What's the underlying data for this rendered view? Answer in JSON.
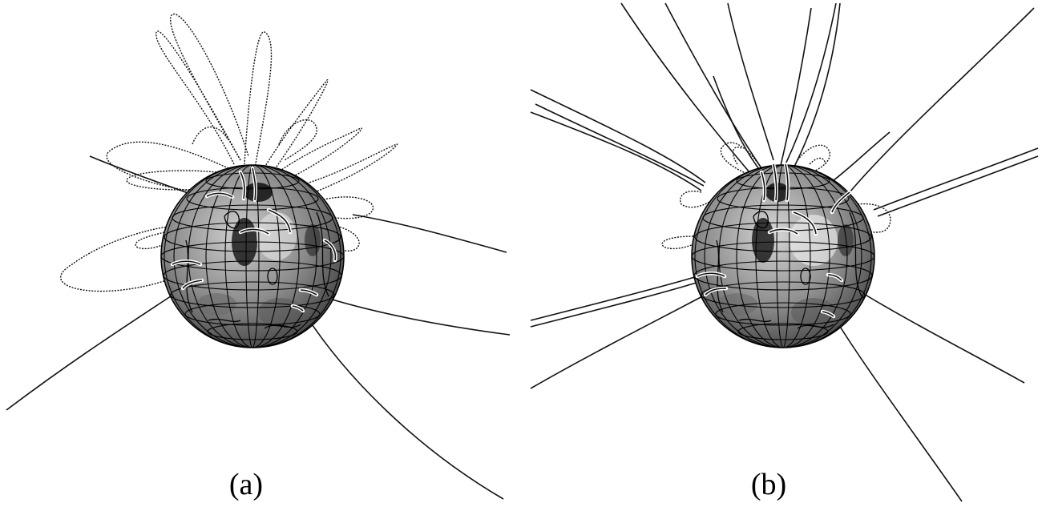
{
  "panels": [
    {
      "id": "a",
      "label": "(a)"
    },
    {
      "id": "b",
      "label": "(b)"
    }
  ]
}
